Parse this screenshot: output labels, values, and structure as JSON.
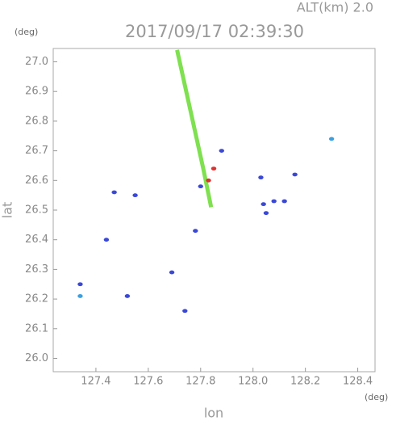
{
  "chart_data": {
    "type": "scatter",
    "title": "2017/09/17 02:39:30",
    "annotation": "ALT(km) 2.0",
    "x_unit": "(deg)",
    "y_unit": "(deg)",
    "x_label": "lon",
    "y_label": "lat",
    "xlim": [
      127.237,
      128.466
    ],
    "ylim": [
      25.955,
      27.045
    ],
    "xticks": [
      127.4,
      127.6,
      127.8,
      {
        "value": 128.0,
        "label": "128.0"
      },
      128.2,
      128.4
    ],
    "yticks": [
      {
        "value": 26.0,
        "label": "26.0"
      },
      26.1,
      26.2,
      26.3,
      26.4,
      26.5,
      26.6,
      26.7,
      26.8,
      26.9,
      {
        "value": 27.0,
        "label": "27.0"
      }
    ],
    "series": [
      {
        "color": "#7fe050",
        "mode": "line",
        "x": [
          127.71,
          127.76,
          127.81,
          127.84
        ],
        "y": [
          27.04,
          26.84,
          26.64,
          26.51
        ]
      },
      {
        "color": "#3a48d8",
        "mode": "points",
        "x": [
          128.03,
          128.16,
          128.12,
          128.04,
          128.08,
          127.47,
          127.55,
          127.44,
          127.78,
          127.34,
          127.52,
          127.74,
          127.8,
          127.69,
          127.88,
          128.05
        ],
        "y": [
          26.61,
          26.62,
          26.53,
          26.52,
          26.53,
          26.56,
          26.55,
          26.4,
          26.43,
          26.25,
          26.21,
          26.16,
          26.58,
          26.29,
          26.7,
          26.49
        ]
      },
      {
        "color": "#3aa0e0",
        "mode": "points",
        "x": [
          128.3,
          127.34
        ],
        "y": [
          26.74,
          26.21
        ]
      },
      {
        "color": "#e03030",
        "mode": "points",
        "x": [
          127.85,
          127.83
        ],
        "y": [
          26.64,
          26.6
        ]
      }
    ]
  }
}
